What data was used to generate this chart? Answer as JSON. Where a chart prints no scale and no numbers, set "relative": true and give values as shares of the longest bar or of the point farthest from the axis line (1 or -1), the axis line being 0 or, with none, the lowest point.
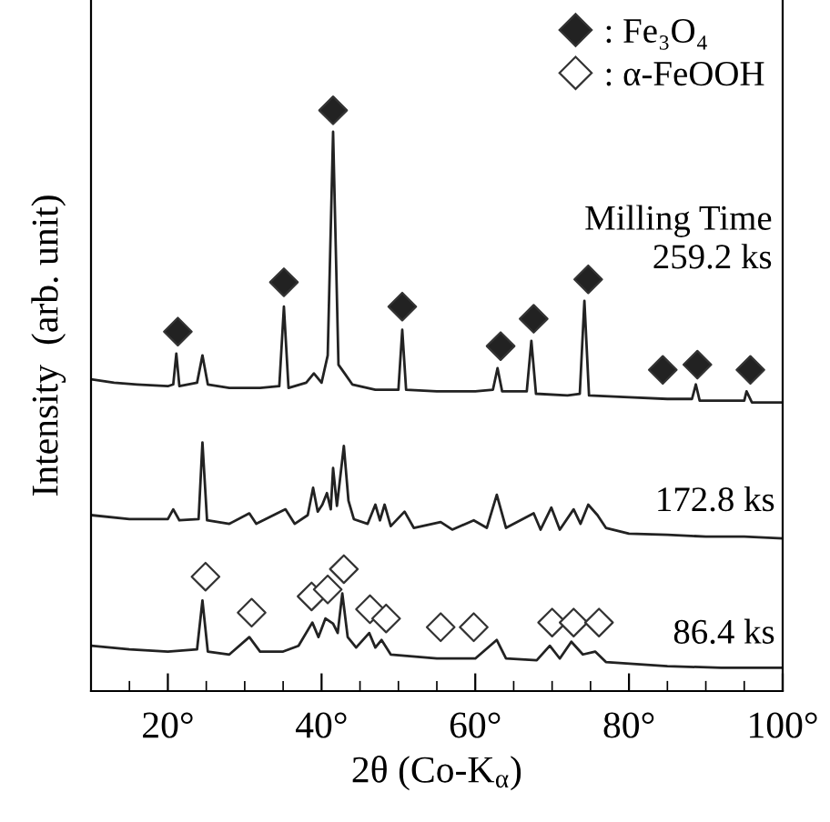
{
  "chart_data": {
    "type": "line",
    "relative": true,
    "xlabel": "2θ (Co-K$_{α}$)",
    "ylabel": "Intensity  (arb. unit)",
    "xlim": [
      10,
      100
    ],
    "xticks": [
      {
        "value": 15,
        "label": null
      },
      {
        "value": 20,
        "label": "20°"
      },
      {
        "value": 25,
        "label": null
      },
      {
        "value": 30,
        "label": null
      },
      {
        "value": 35,
        "label": null
      },
      {
        "value": 40,
        "label": "40°"
      },
      {
        "value": 45,
        "label": null
      },
      {
        "value": 50,
        "label": null
      },
      {
        "value": 55,
        "label": null
      },
      {
        "value": 60,
        "label": "60°"
      },
      {
        "value": 65,
        "label": null
      },
      {
        "value": 70,
        "label": null
      },
      {
        "value": 75,
        "label": null
      },
      {
        "value": 80,
        "label": "80°"
      },
      {
        "value": 85,
        "label": null
      },
      {
        "value": 90,
        "label": null
      },
      {
        "value": 95,
        "label": null
      },
      {
        "value": 100,
        "label": "100°"
      }
    ],
    "tick_labels": "x",
    "legend": "top right",
    "line_style": "solid",
    "annotations": [
      "Milling Time",
      "259.2 ks"
    ],
    "series": [
      {
        "color": "#222222",
        "x": [
          10,
          13,
          16,
          20,
          20.7,
          21.1,
          21.5,
          23.8,
          24.5,
          25.2,
          28,
          32,
          34.5,
          35.1,
          35.7,
          38,
          39,
          40,
          40.8,
          41.5,
          42.2,
          43,
          44,
          47,
          50,
          50.5,
          51,
          55,
          60,
          62.3,
          62.9,
          63.5,
          66.7,
          67.3,
          67.9,
          72,
          73.6,
          74.2,
          74.8,
          80,
          85,
          88.2,
          88.7,
          89.2,
          95,
          95.3,
          96,
          100
        ],
        "values": [
          0.537,
          0.531,
          0.528,
          0.525,
          0.528,
          0.581,
          0.525,
          0.531,
          0.578,
          0.528,
          0.522,
          0.522,
          0.525,
          0.662,
          0.522,
          0.531,
          0.547,
          0.531,
          0.578,
          0.963,
          0.562,
          0.547,
          0.528,
          0.519,
          0.519,
          0.622,
          0.519,
          0.516,
          0.516,
          0.519,
          0.556,
          0.516,
          0.516,
          0.603,
          0.512,
          0.509,
          0.512,
          0.672,
          0.509,
          0.506,
          0.503,
          0.503,
          0.528,
          0.5,
          0.5,
          0.516,
          0.497,
          0.497
        ]
      },
      {
        "name": "172.8 ks",
        "color": "#222222",
        "x": [
          10,
          15,
          20,
          20.7,
          21.5,
          24.0,
          24.5,
          25.1,
          28,
          30.6,
          31.5,
          35.3,
          36.5,
          38.2,
          38.9,
          39.5,
          40.1,
          40.7,
          41.2,
          41.5,
          42,
          42.9,
          43.5,
          44.2,
          46,
          47.0,
          47.6,
          48.2,
          49,
          50.8,
          52,
          55.5,
          57,
          59.8,
          61.5,
          62.8,
          64,
          67.6,
          68.5,
          69.9,
          71,
          72.8,
          73.7,
          74.7,
          75.9,
          77,
          80,
          85,
          90,
          95,
          100
        ],
        "values": [
          0.303,
          0.296,
          0.296,
          0.313,
          0.294,
          0.296,
          0.428,
          0.294,
          0.288,
          0.306,
          0.288,
          0.313,
          0.288,
          0.303,
          0.35,
          0.309,
          0.321,
          0.341,
          0.313,
          0.384,
          0.319,
          0.422,
          0.328,
          0.296,
          0.288,
          0.321,
          0.294,
          0.321,
          0.284,
          0.309,
          0.281,
          0.291,
          0.278,
          0.294,
          0.281,
          0.338,
          0.281,
          0.306,
          0.278,
          0.316,
          0.278,
          0.313,
          0.288,
          0.321,
          0.303,
          0.281,
          0.271,
          0.269,
          0.266,
          0.266,
          0.263
        ]
      },
      {
        "name": "86.4 ks",
        "color": "#222222",
        "x": [
          10,
          15,
          20,
          23.8,
          24.5,
          25.2,
          28,
          30.6,
          32,
          35,
          37,
          38.8,
          39.6,
          40.5,
          41.5,
          42.1,
          42.7,
          43.4,
          44.5,
          46.2,
          47,
          47.8,
          49,
          55,
          60,
          62.8,
          64,
          68,
          69.7,
          71,
          72.5,
          74,
          75.6,
          77,
          85,
          92,
          100
        ],
        "values": [
          0.078,
          0.072,
          0.068,
          0.072,
          0.156,
          0.068,
          0.063,
          0.093,
          0.068,
          0.068,
          0.078,
          0.118,
          0.093,
          0.125,
          0.116,
          0.1,
          0.168,
          0.093,
          0.075,
          0.1,
          0.075,
          0.088,
          0.063,
          0.056,
          0.056,
          0.088,
          0.056,
          0.053,
          0.078,
          0.056,
          0.085,
          0.063,
          0.068,
          0.05,
          0.043,
          0.04,
          0.04
        ]
      },
      {
        "type": "scatter",
        "name": ": Fe₃O₄",
        "color": "#222222",
        "marker": "diamond",
        "x": [
          21.3,
          35.1,
          41.5,
          50.5,
          63.3,
          67.6,
          74.7,
          84.4,
          88.9,
          95.8
        ],
        "values": [
          0.619,
          0.704,
          1,
          0.662,
          0.594,
          0.641,
          0.709,
          0.553,
          0.562,
          0.553
        ]
      },
      {
        "type": "scatter",
        "name": ": α-FeOOH",
        "color": "#ffffff",
        "marker": "diamond",
        "x": [
          24.9,
          30.9,
          38.7,
          40.8,
          42.9,
          46.3,
          48.4,
          55.5,
          59.8,
          70.0,
          72.8,
          76.1
        ],
        "values": [
          0.197,
          0.135,
          0.163,
          0.175,
          0.21,
          0.141,
          0.125,
          0.11,
          0.11,
          0.118,
          0.118,
          0.118
        ]
      }
    ]
  }
}
